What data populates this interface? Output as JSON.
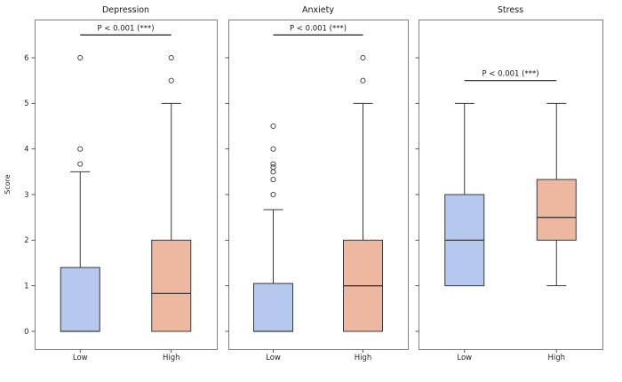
{
  "figure": {
    "ylabel": "Score",
    "colors": {
      "background": "#ffffff",
      "low_fill": "#b5c8ee",
      "high_fill": "#eeb8a0",
      "box_edge": "#3a3a3a",
      "panel_border": "#808080",
      "tick_color": "#444444",
      "annotation_color": "#1a1a1a"
    }
  },
  "chart_data": [
    {
      "type": "box",
      "title": "Depression",
      "ylabel": "Score",
      "categories": [
        "Low",
        "High"
      ],
      "yticks": [
        0,
        1,
        2,
        3,
        4,
        5,
        6
      ],
      "ylim": [
        -0.4,
        6.85
      ],
      "grid": false,
      "annotation": {
        "text": "P < 0.001 (***)",
        "y": 6.5
      },
      "series": [
        {
          "name": "Low",
          "color": "#b5c8ee",
          "whislo": 0,
          "q1": 0,
          "med": 0,
          "q3": 1.4,
          "whishi": 3.5,
          "fliers": [
            3.67,
            4.0,
            6.0
          ]
        },
        {
          "name": "High",
          "color": "#eeb8a0",
          "whislo": 0,
          "q1": 0,
          "med": 0.83,
          "q3": 2.0,
          "whishi": 5.0,
          "fliers": [
            5.5,
            6.0
          ]
        }
      ]
    },
    {
      "type": "box",
      "title": "Anxiety",
      "ylabel": "Score",
      "categories": [
        "Low",
        "High"
      ],
      "yticks": [
        0,
        1,
        2,
        3,
        4,
        5,
        6
      ],
      "ylim": [
        -0.4,
        6.85
      ],
      "grid": false,
      "annotation": {
        "text": "P < 0.001 (***)",
        "y": 6.5
      },
      "series": [
        {
          "name": "Low",
          "color": "#b5c8ee",
          "whislo": 0,
          "q1": 0,
          "med": 0,
          "q3": 1.05,
          "whishi": 2.67,
          "fliers": [
            3.0,
            3.33,
            3.5,
            3.6,
            3.67,
            4.0,
            4.5
          ]
        },
        {
          "name": "High",
          "color": "#eeb8a0",
          "whislo": 0,
          "q1": 0,
          "med": 1.0,
          "q3": 2.0,
          "whishi": 5.0,
          "fliers": [
            5.5,
            6.0
          ]
        }
      ]
    },
    {
      "type": "box",
      "title": "Stress",
      "ylabel": "Score",
      "categories": [
        "Low",
        "High"
      ],
      "yticks": [
        0,
        1,
        2,
        3,
        4,
        5,
        6
      ],
      "ylim": [
        -0.4,
        6.85
      ],
      "grid": false,
      "annotation": {
        "text": "P < 0.001 (***)",
        "y": 5.5
      },
      "series": [
        {
          "name": "Low",
          "color": "#b5c8ee",
          "whislo": 1.0,
          "q1": 1.0,
          "med": 2.0,
          "q3": 3.0,
          "whishi": 5.0,
          "fliers": []
        },
        {
          "name": "High",
          "color": "#eeb8a0",
          "whislo": 1.0,
          "q1": 2.0,
          "med": 2.5,
          "q3": 3.33,
          "whishi": 5.0,
          "fliers": []
        }
      ]
    }
  ]
}
